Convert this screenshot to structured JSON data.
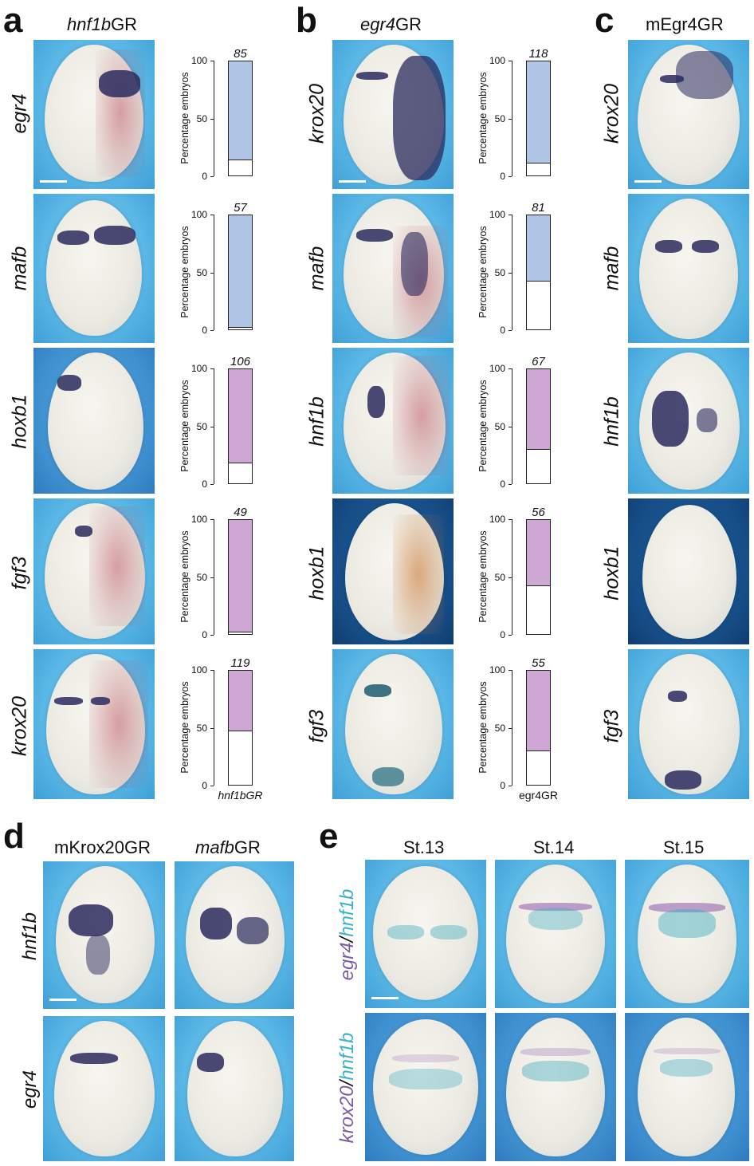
{
  "panel_labels": {
    "a": "a",
    "b": "b",
    "c": "c",
    "d": "d",
    "e": "e"
  },
  "headers": {
    "a": {
      "italic": "hnf1b",
      "rest": "GR"
    },
    "b": {
      "italic": "egr4",
      "rest": "GR"
    },
    "c": "mEgr4GR",
    "d1": "mKrox20GR",
    "d2": {
      "italic": "mafb",
      "rest": "GR"
    },
    "e1": "St.13",
    "e2": "St.14",
    "e3": "St.15"
  },
  "genes": {
    "a": [
      "egr4",
      "mafb",
      "hoxb1",
      "fgf3",
      "krox20"
    ],
    "b": [
      "krox20",
      "mafb",
      "hnf1b",
      "hoxb1",
      "fgf3"
    ],
    "c": [
      "krox20",
      "mafb",
      "hnf1b",
      "hoxb1",
      "fgf3"
    ],
    "d": [
      "hnf1b",
      "egr4"
    ],
    "e": [
      {
        "a": "egr4",
        "sep": "/",
        "b": "hnf1b"
      },
      {
        "a": "krox20",
        "sep": "/",
        "b": "hnf1b"
      }
    ]
  },
  "colors": {
    "blue_fill": "#b0c4e6",
    "purple_fill": "#cfa7d4",
    "purple_text": "#7b5ca6",
    "cyan_text": "#3bb4c8"
  },
  "chart_data": [
    {
      "panel": "a",
      "type": "bar",
      "ylabel": "Percentage embryos",
      "yticks": [
        0,
        50,
        100
      ],
      "ylim": [
        0,
        100
      ],
      "gene": "egr4",
      "n": "85",
      "colored_percent": 86,
      "white_percent": 14,
      "fill": "blue"
    },
    {
      "panel": "a",
      "type": "bar",
      "ylabel": "Percentage embryos",
      "yticks": [
        0,
        50,
        100
      ],
      "ylim": [
        0,
        100
      ],
      "gene": "mafb",
      "n": "57",
      "colored_percent": 98,
      "white_percent": 2,
      "fill": "blue"
    },
    {
      "panel": "a",
      "type": "bar",
      "ylabel": "Percentage embryos",
      "yticks": [
        0,
        50,
        100
      ],
      "ylim": [
        0,
        100
      ],
      "gene": "hoxb1",
      "n": "106",
      "colored_percent": 82,
      "white_percent": 18,
      "fill": "purple"
    },
    {
      "panel": "a",
      "type": "bar",
      "ylabel": "Percentage embryos",
      "yticks": [
        0,
        50,
        100
      ],
      "ylim": [
        0,
        100
      ],
      "gene": "fgf3",
      "n": "49",
      "colored_percent": 98,
      "white_percent": 2,
      "fill": "purple"
    },
    {
      "panel": "a",
      "type": "bar",
      "ylabel": "Percentage embryos",
      "yticks": [
        0,
        50,
        100
      ],
      "ylim": [
        0,
        100
      ],
      "gene": "krox20",
      "n": "119",
      "colored_percent": 53,
      "white_percent": 47,
      "fill": "purple",
      "xlabel": "hnf1bGR"
    },
    {
      "panel": "b",
      "type": "bar",
      "ylabel": "Percentage embryos",
      "yticks": [
        0,
        50,
        100
      ],
      "ylim": [
        0,
        100
      ],
      "gene": "krox20",
      "n": "118",
      "colored_percent": 89,
      "white_percent": 11,
      "fill": "blue"
    },
    {
      "panel": "b",
      "type": "bar",
      "ylabel": "Percentage embryos",
      "yticks": [
        0,
        50,
        100
      ],
      "ylim": [
        0,
        100
      ],
      "gene": "mafb",
      "n": "81",
      "colored_percent": 58,
      "white_percent": 42,
      "fill": "blue"
    },
    {
      "panel": "b",
      "type": "bar",
      "ylabel": "Percentage embryos",
      "yticks": [
        0,
        50,
        100
      ],
      "ylim": [
        0,
        100
      ],
      "gene": "hnf1b",
      "n": "67",
      "colored_percent": 70,
      "white_percent": 30,
      "fill": "purple"
    },
    {
      "panel": "b",
      "type": "bar",
      "ylabel": "Percentage embryos",
      "yticks": [
        0,
        50,
        100
      ],
      "ylim": [
        0,
        100
      ],
      "gene": "hoxb1",
      "n": "56",
      "colored_percent": 58,
      "white_percent": 42,
      "fill": "purple"
    },
    {
      "panel": "b",
      "type": "bar",
      "ylabel": "Percentage embryos",
      "yticks": [
        0,
        50,
        100
      ],
      "ylim": [
        0,
        100
      ],
      "gene": "fgf3",
      "n": "55",
      "colored_percent": 70,
      "white_percent": 30,
      "fill": "purple",
      "xlabel": "egr4GR"
    }
  ]
}
